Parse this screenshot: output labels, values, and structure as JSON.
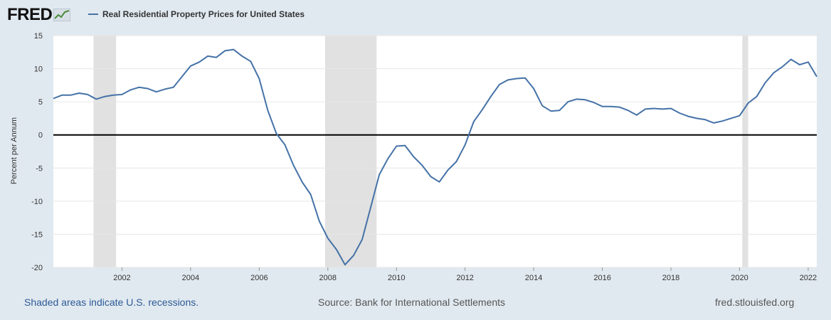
{
  "header": {
    "logo_text": "FRED",
    "series_title": "Real Residential Property Prices for United States"
  },
  "footer": {
    "recession_note": "Shaded areas indicate U.S. recessions.",
    "source": "Source: Bank for International Settlements",
    "site": "fred.stlouisfed.org"
  },
  "colors": {
    "line": "#4572a7",
    "recession": "#e1e1e1",
    "background": "#e1e9f0",
    "plot": "#ffffff"
  },
  "chart_data": {
    "type": "line",
    "title": "Real Residential Property Prices for United States",
    "ylabel": "Percent per Annum",
    "xlabel": "",
    "ylim": [
      -20,
      15
    ],
    "xlim": [
      2000.0,
      2022.25
    ],
    "yticks": [
      15,
      10,
      5,
      0,
      -5,
      -10,
      -15,
      -20
    ],
    "xticks": [
      2002,
      2004,
      2006,
      2008,
      2010,
      2012,
      2014,
      2016,
      2018,
      2020,
      2022
    ],
    "grid": "horizontal",
    "recessions": [
      [
        2001.17,
        2001.83
      ],
      [
        2007.92,
        2009.42
      ],
      [
        2020.08,
        2020.25
      ]
    ],
    "series": [
      {
        "name": "Real Residential Property Prices for United States",
        "x": [
          2000.0,
          2000.25,
          2000.5,
          2000.75,
          2001.0,
          2001.25,
          2001.5,
          2001.75,
          2002.0,
          2002.25,
          2002.5,
          2002.75,
          2003.0,
          2003.25,
          2003.5,
          2003.75,
          2004.0,
          2004.25,
          2004.5,
          2004.75,
          2005.0,
          2005.25,
          2005.5,
          2005.75,
          2006.0,
          2006.25,
          2006.5,
          2006.75,
          2007.0,
          2007.25,
          2007.5,
          2007.75,
          2008.0,
          2008.25,
          2008.5,
          2008.75,
          2009.0,
          2009.25,
          2009.5,
          2009.75,
          2010.0,
          2010.25,
          2010.5,
          2010.75,
          2011.0,
          2011.25,
          2011.5,
          2011.75,
          2012.0,
          2012.25,
          2012.5,
          2012.75,
          2013.0,
          2013.25,
          2013.5,
          2013.75,
          2014.0,
          2014.25,
          2014.5,
          2014.75,
          2015.0,
          2015.25,
          2015.5,
          2015.75,
          2016.0,
          2016.25,
          2016.5,
          2016.75,
          2017.0,
          2017.25,
          2017.5,
          2017.75,
          2018.0,
          2018.25,
          2018.5,
          2018.75,
          2019.0,
          2019.25,
          2019.5,
          2019.75,
          2020.0,
          2020.25,
          2020.5,
          2020.75,
          2021.0,
          2021.25,
          2021.5,
          2021.75,
          2022.0,
          2022.25
        ],
        "values": [
          5.5,
          6.0,
          6.0,
          6.3,
          6.1,
          5.4,
          5.8,
          6.0,
          6.1,
          6.8,
          7.2,
          7.0,
          6.5,
          6.9,
          7.2,
          8.8,
          10.4,
          11.0,
          11.9,
          11.7,
          12.7,
          12.9,
          11.9,
          11.1,
          8.5,
          3.7,
          0.2,
          -1.5,
          -4.6,
          -7.1,
          -9.0,
          -13.0,
          -15.6,
          -17.3,
          -19.6,
          -18.2,
          -15.8,
          -10.9,
          -6.0,
          -3.6,
          -1.7,
          -1.6,
          -3.3,
          -4.6,
          -6.3,
          -7.1,
          -5.3,
          -4.0,
          -1.5,
          2.0,
          3.8,
          5.8,
          7.6,
          8.3,
          8.5,
          8.6,
          7.0,
          4.4,
          3.6,
          3.7,
          5.0,
          5.4,
          5.3,
          4.9,
          4.3,
          4.3,
          4.2,
          3.7,
          3.0,
          3.9,
          4.0,
          3.9,
          4.0,
          3.3,
          2.8,
          2.5,
          2.3,
          1.8,
          2.1,
          2.5,
          2.9,
          4.8,
          5.8,
          7.9,
          9.4,
          10.3,
          11.4,
          10.6,
          11.0,
          8.8
        ]
      }
    ]
  }
}
